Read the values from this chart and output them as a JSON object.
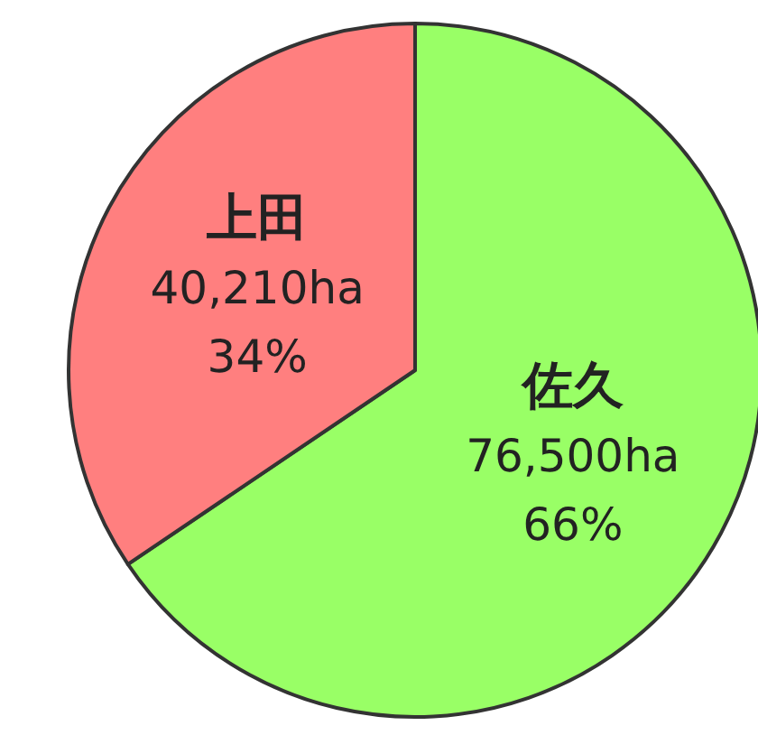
{
  "chart_data": {
    "type": "pie",
    "categories": [
      "佐久",
      "上田"
    ],
    "values": [
      76500,
      40210
    ],
    "colors": [
      "#99ff66",
      "#ff7f7f"
    ],
    "value_labels": [
      "76,500ha\n66%",
      "40,210ha\n34%"
    ],
    "legend": false
  }
}
